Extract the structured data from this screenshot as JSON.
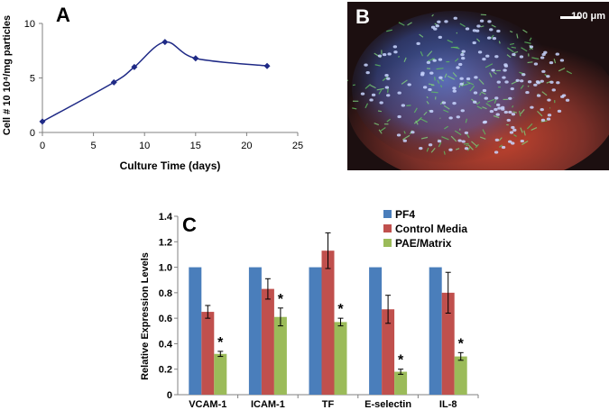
{
  "panels": {
    "a": "A",
    "b": "B",
    "c": "C"
  },
  "micrograph": {
    "scale_label": "100 μm"
  },
  "chart_data": [
    {
      "type": "line",
      "title": "",
      "xlabel": "Culture Time (days)",
      "ylabel": "Cell # 10 10⁴/mg particles",
      "xlim": [
        0,
        25
      ],
      "ylim": [
        0,
        10
      ],
      "xticks": [
        0,
        5,
        10,
        15,
        20,
        25
      ],
      "yticks": [
        0,
        5,
        10
      ],
      "grid": false,
      "series": [
        {
          "x": [
            0,
            7,
            9,
            12,
            15,
            22
          ],
          "y": [
            1.0,
            4.6,
            6.0,
            8.3,
            6.8,
            6.1
          ],
          "color": "#1f2a86"
        }
      ]
    },
    {
      "type": "bar",
      "title": "",
      "xlabel": "",
      "ylabel": "Relative Expression Levels",
      "ylim": [
        0,
        1.4
      ],
      "yticks": [
        "0",
        "0.2",
        "0.4",
        "0.6",
        "0.8",
        "1.0",
        "1.2",
        "1.4"
      ],
      "grid": false,
      "legend": "top-right",
      "categories": [
        "VCAM-1",
        "ICAM-1",
        "TF",
        "E-selectin",
        "IL-8"
      ],
      "series": [
        {
          "name": "PF4",
          "color": "#4a7ebb",
          "values": [
            1.0,
            1.0,
            1.0,
            1.0,
            1.0
          ],
          "errors": [
            0,
            0,
            0,
            0,
            0
          ]
        },
        {
          "name": "Control Media",
          "color": "#c0504d",
          "values": [
            0.65,
            0.83,
            1.13,
            0.67,
            0.8
          ],
          "errors": [
            0.05,
            0.08,
            0.14,
            0.11,
            0.16
          ]
        },
        {
          "name": "PAE/Matrix",
          "color": "#9bbb59",
          "values": [
            0.32,
            0.61,
            0.57,
            0.18,
            0.3
          ],
          "errors": [
            0.02,
            0.07,
            0.03,
            0.02,
            0.03
          ]
        }
      ],
      "annotations": [
        "*",
        "*",
        "*",
        "*",
        "*"
      ]
    }
  ]
}
